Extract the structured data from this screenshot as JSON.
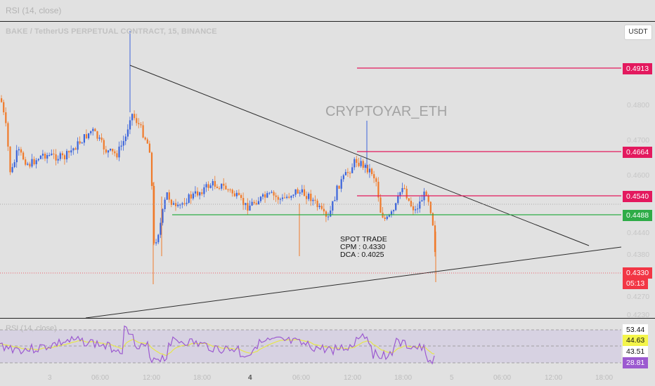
{
  "top_pane_label": "RSI (14, close)",
  "symbol_title": "BAKE / TetherUS PERPETUAL CONTRACT, 15, BINANCE",
  "currency_button": "USDT",
  "watermark": "CRYPTOYAR_ETH",
  "annotation": {
    "line1": "SPOT TRADE",
    "line2": "CPM :  0.4330",
    "line3": "DCA  : 0.4025"
  },
  "price_axis": [
    "0.4800",
    "0.4700",
    "0.4600",
    "0.4440",
    "0.4380",
    "0.4270",
    "0.4230"
  ],
  "price_tags": [
    {
      "label": "0.4913",
      "color": "#e3195e"
    },
    {
      "label": "0.4664",
      "color": "#e3195e"
    },
    {
      "label": "0.4540",
      "color": "#e3195e"
    },
    {
      "label": "0.4488",
      "color": "#2eac47"
    },
    {
      "label": "0.4330",
      "color": "#f23645"
    },
    {
      "label": "05:13",
      "color": "#f23645"
    }
  ],
  "rsi_label": "RSI (14, close)",
  "rsi_tags": [
    {
      "label": "53.44",
      "bg": "#ffffff",
      "fg": "#111111"
    },
    {
      "label": "44.63",
      "bg": "#f4f54a",
      "fg": "#111111"
    },
    {
      "label": "43.51",
      "bg": "#ffffff",
      "fg": "#111111"
    },
    {
      "label": "28.81",
      "bg": "#9c5ad0",
      "fg": "#ffffff"
    }
  ],
  "time_axis": [
    "3",
    "06:00",
    "12:00",
    "18:00",
    "4",
    "06:00",
    "12:00",
    "18:00",
    "5",
    "06:00",
    "12:00",
    "18:00"
  ],
  "colors": {
    "up": "#3b64db",
    "down": "#f07a2a",
    "resistance": "#e3195e",
    "support": "#2eac47",
    "rsi_line": "#9c5ad0",
    "rsi_ma": "#e6e64a"
  }
}
